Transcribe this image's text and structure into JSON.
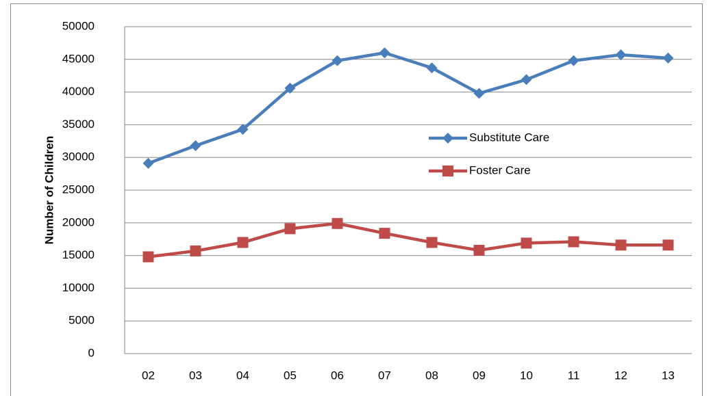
{
  "chart_data": {
    "type": "line",
    "y_label": "Number of Children",
    "categories": [
      "02",
      "03",
      "04",
      "05",
      "06",
      "07",
      "08",
      "09",
      "10",
      "11",
      "12",
      "13"
    ],
    "series": [
      {
        "name": "Substitute Care",
        "color": "#4a7ebb",
        "marker": "diamond",
        "values": [
          29100,
          31800,
          34300,
          40600,
          44800,
          46000,
          43700,
          39800,
          41900,
          44800,
          45700,
          45200
        ]
      },
      {
        "name": "Foster Care",
        "color": "#be4b48",
        "marker": "square",
        "values": [
          14800,
          15700,
          17000,
          19100,
          19900,
          18400,
          17000,
          15800,
          16900,
          17100,
          16600,
          16600
        ]
      }
    ],
    "ylim": [
      0,
      50000
    ],
    "yticks": [
      0,
      5000,
      10000,
      15000,
      20000,
      25000,
      30000,
      35000,
      40000,
      45000,
      50000
    ],
    "grid": true
  }
}
